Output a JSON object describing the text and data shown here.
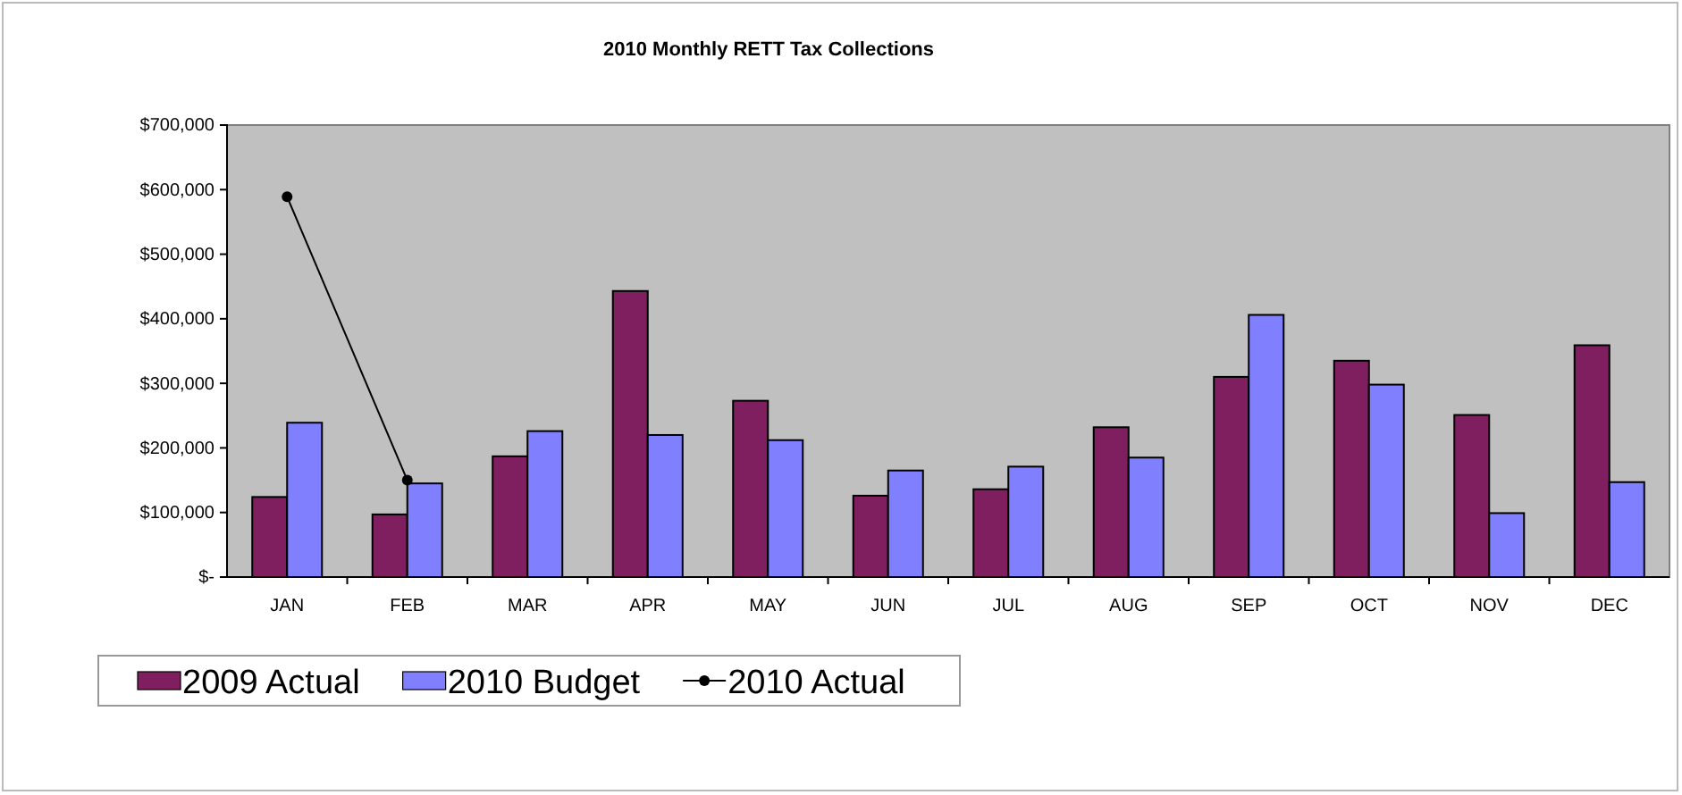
{
  "chart_data": {
    "type": "bar",
    "title": "2010 Monthly RETT Tax Collections",
    "categories": [
      "JAN",
      "FEB",
      "MAR",
      "APR",
      "MAY",
      "JUN",
      "JUL",
      "AUG",
      "SEP",
      "OCT",
      "NOV",
      "DEC"
    ],
    "series": [
      {
        "name": "2009 Actual",
        "color": "#7f1f5f",
        "values": [
          124000,
          97000,
          187000,
          443000,
          273000,
          126000,
          136000,
          232000,
          310000,
          335000,
          251000,
          359000
        ]
      },
      {
        "name": "2010 Budget",
        "color": "#8080ff",
        "values": [
          239000,
          145000,
          226000,
          220000,
          212000,
          165000,
          171000,
          185000,
          406000,
          298000,
          99000,
          147000
        ]
      },
      {
        "name": "2010 Actual",
        "type": "line",
        "color": "#000000",
        "marker": "circle",
        "line_style": "solid",
        "values": [
          589000,
          150000,
          null,
          null,
          null,
          null,
          null,
          null,
          null,
          null,
          null,
          null
        ]
      }
    ],
    "ylim": [
      0,
      700000
    ],
    "yticks": [
      {
        "value": 0,
        "label": "$-"
      },
      {
        "value": 100000,
        "label": "$100,000"
      },
      {
        "value": 200000,
        "label": "$200,000"
      },
      {
        "value": 300000,
        "label": "$300,000"
      },
      {
        "value": 400000,
        "label": "$400,000"
      },
      {
        "value": 500000,
        "label": "$500,000"
      },
      {
        "value": 600000,
        "label": "$600,000"
      },
      {
        "value": 700000,
        "label": "$700,000"
      }
    ],
    "grid": false,
    "legend": "bottom left"
  }
}
